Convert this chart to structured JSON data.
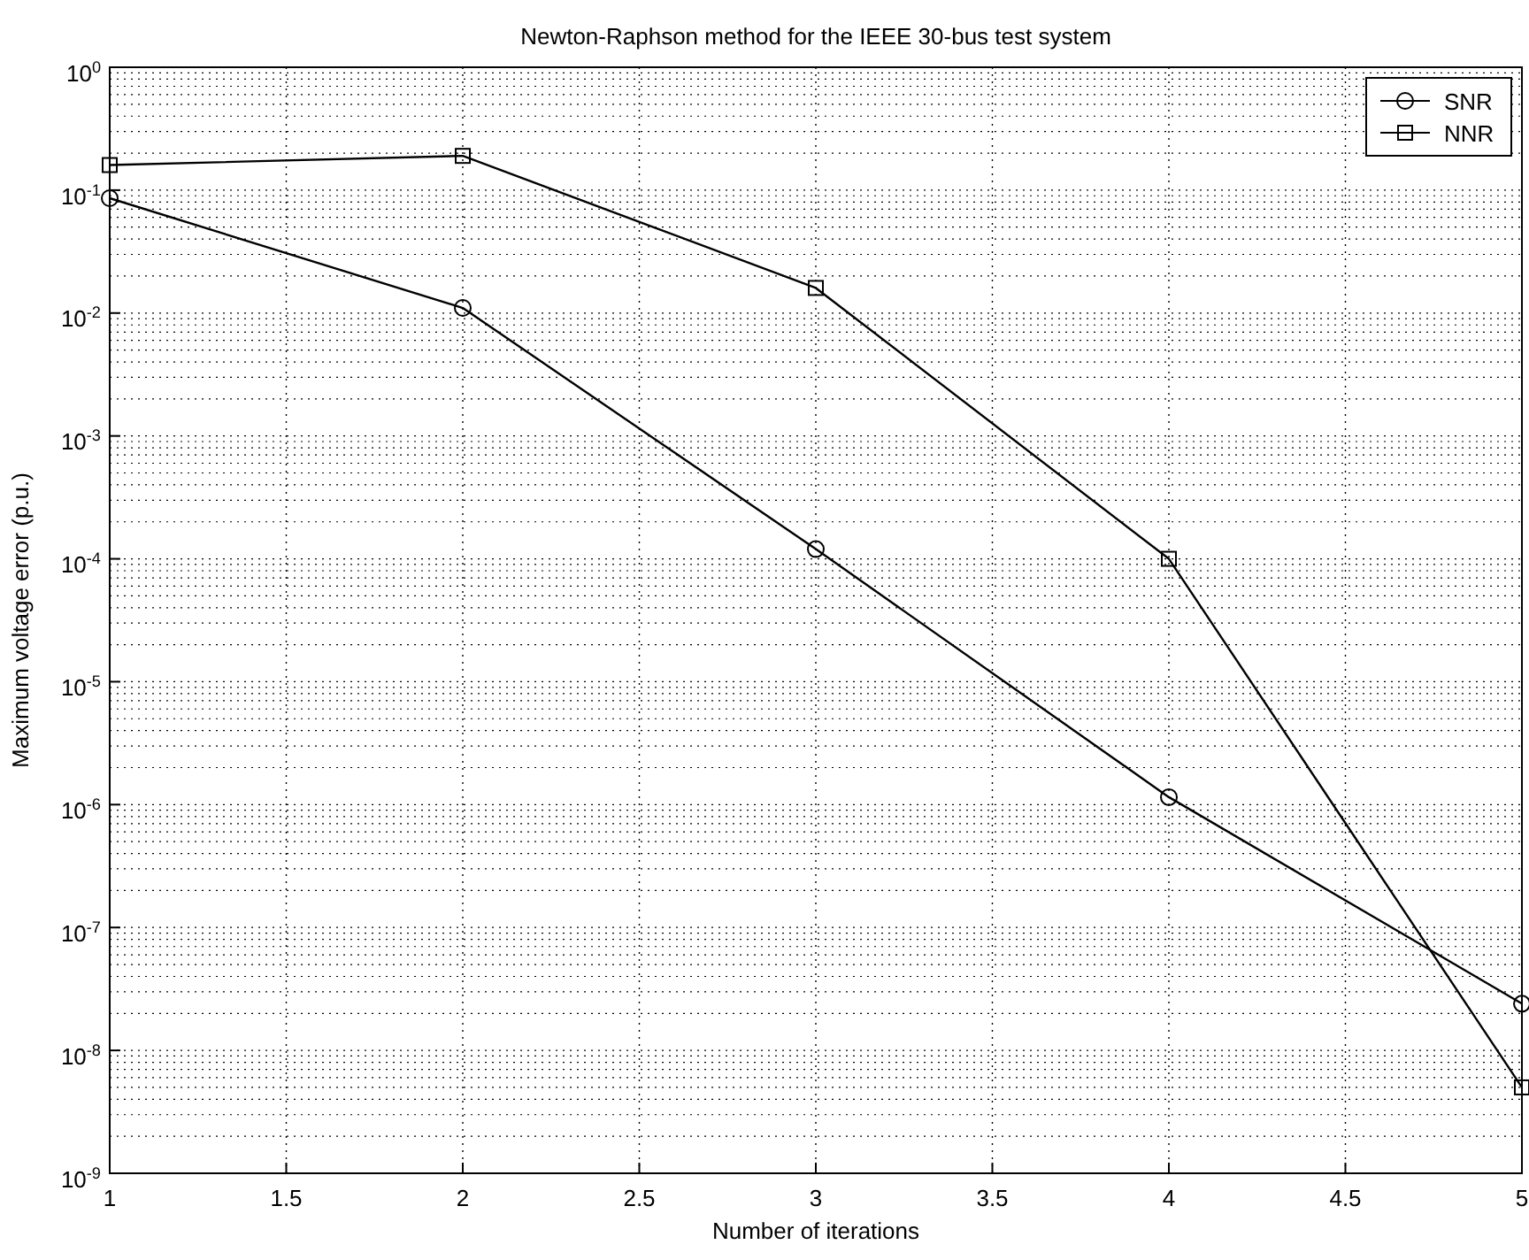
{
  "chart_data": {
    "type": "line",
    "title": "Newton-Raphson method for the IEEE 30-bus test system",
    "xlabel": "Number of iterations",
    "ylabel": "Maximum voltage error (p.u.)",
    "x": [
      1,
      2,
      3,
      4,
      5
    ],
    "series": [
      {
        "name": "SNR",
        "color": "#000000",
        "marker": "circle",
        "values": [
          0.086,
          0.011,
          0.00012,
          1.15e-06,
          2.4e-08
        ]
      },
      {
        "name": "NNR",
        "color": "#000000",
        "marker": "square",
        "values": [
          0.16,
          0.19,
          0.016,
          0.0001,
          5e-09
        ]
      }
    ],
    "log": "y",
    "xlim": [
      1,
      5
    ],
    "xticks": [
      1,
      1.5,
      2,
      2.5,
      3,
      3.5,
      4,
      4.5,
      5
    ],
    "ylim": [
      1e-09,
      1
    ],
    "yticks": [
      {
        "value": 1e-09,
        "label": "10$^{-9}$"
      },
      {
        "value": 1e-08,
        "label": "10$^{-8}$"
      },
      {
        "value": 1e-07,
        "label": "10$^{-7}$"
      },
      {
        "value": 1e-06,
        "label": "10$^{-6}$"
      },
      {
        "value": 1e-05,
        "label": "10$^{-5}$"
      },
      {
        "value": 0.0001,
        "label": "10$^{-4}$"
      },
      {
        "value": 0.001,
        "label": "10$^{-3}$"
      },
      {
        "value": 0.01,
        "label": "10$^{-2}$"
      },
      {
        "value": 0.1,
        "label": "10$^{-1}$"
      },
      {
        "value": 1,
        "label": "10$^{0}$"
      }
    ],
    "grid": true,
    "legend": "top right",
    "line_style": "solid"
  }
}
